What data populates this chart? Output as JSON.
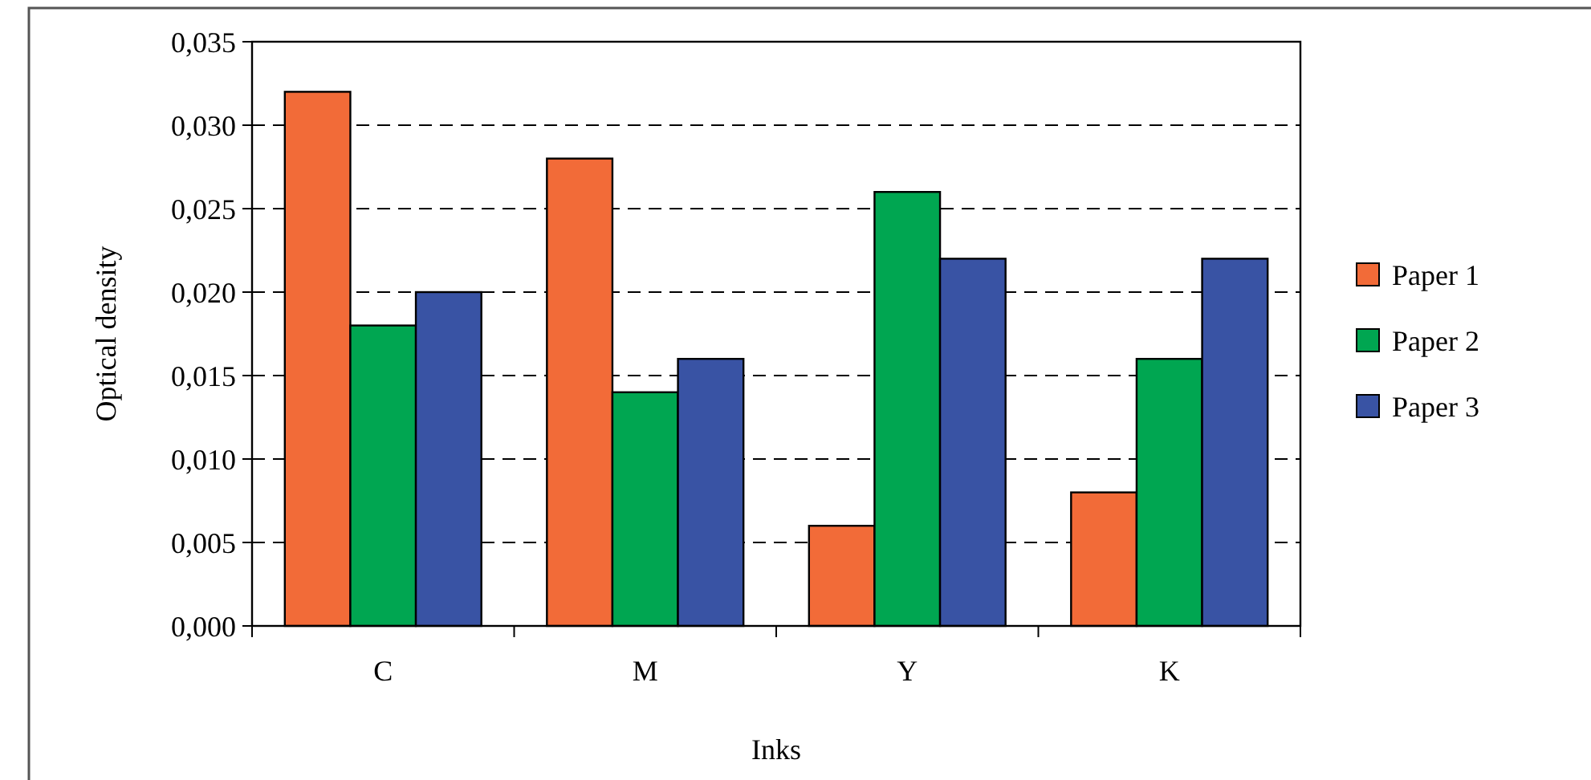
{
  "chart_data": {
    "type": "bar",
    "xlabel": "Inks",
    "ylabel": "Optical density",
    "categories": [
      "C",
      "M",
      "Y",
      "K"
    ],
    "series": [
      {
        "name": "Paper 1",
        "color": "#f26b38",
        "values": [
          0.032,
          0.028,
          0.006,
          0.008
        ]
      },
      {
        "name": "Paper 2",
        "color": "#00a651",
        "values": [
          0.018,
          0.014,
          0.026,
          0.016
        ]
      },
      {
        "name": "Paper 3",
        "color": "#3953a4",
        "values": [
          0.02,
          0.016,
          0.022,
          0.022
        ]
      }
    ],
    "ylim": [
      0,
      0.035
    ],
    "yticks": [
      {
        "value": 0,
        "label": "0,000"
      },
      {
        "value": 0.005,
        "label": "0,005"
      },
      {
        "value": 0.01,
        "label": "0,010"
      },
      {
        "value": 0.015,
        "label": "0,015"
      },
      {
        "value": 0.02,
        "label": "0,020"
      },
      {
        "value": 0.025,
        "label": "0,025"
      },
      {
        "value": 0.03,
        "label": "0,030"
      },
      {
        "value": 0.035,
        "label": "0,035"
      }
    ],
    "grid": "y",
    "legend": "right"
  }
}
